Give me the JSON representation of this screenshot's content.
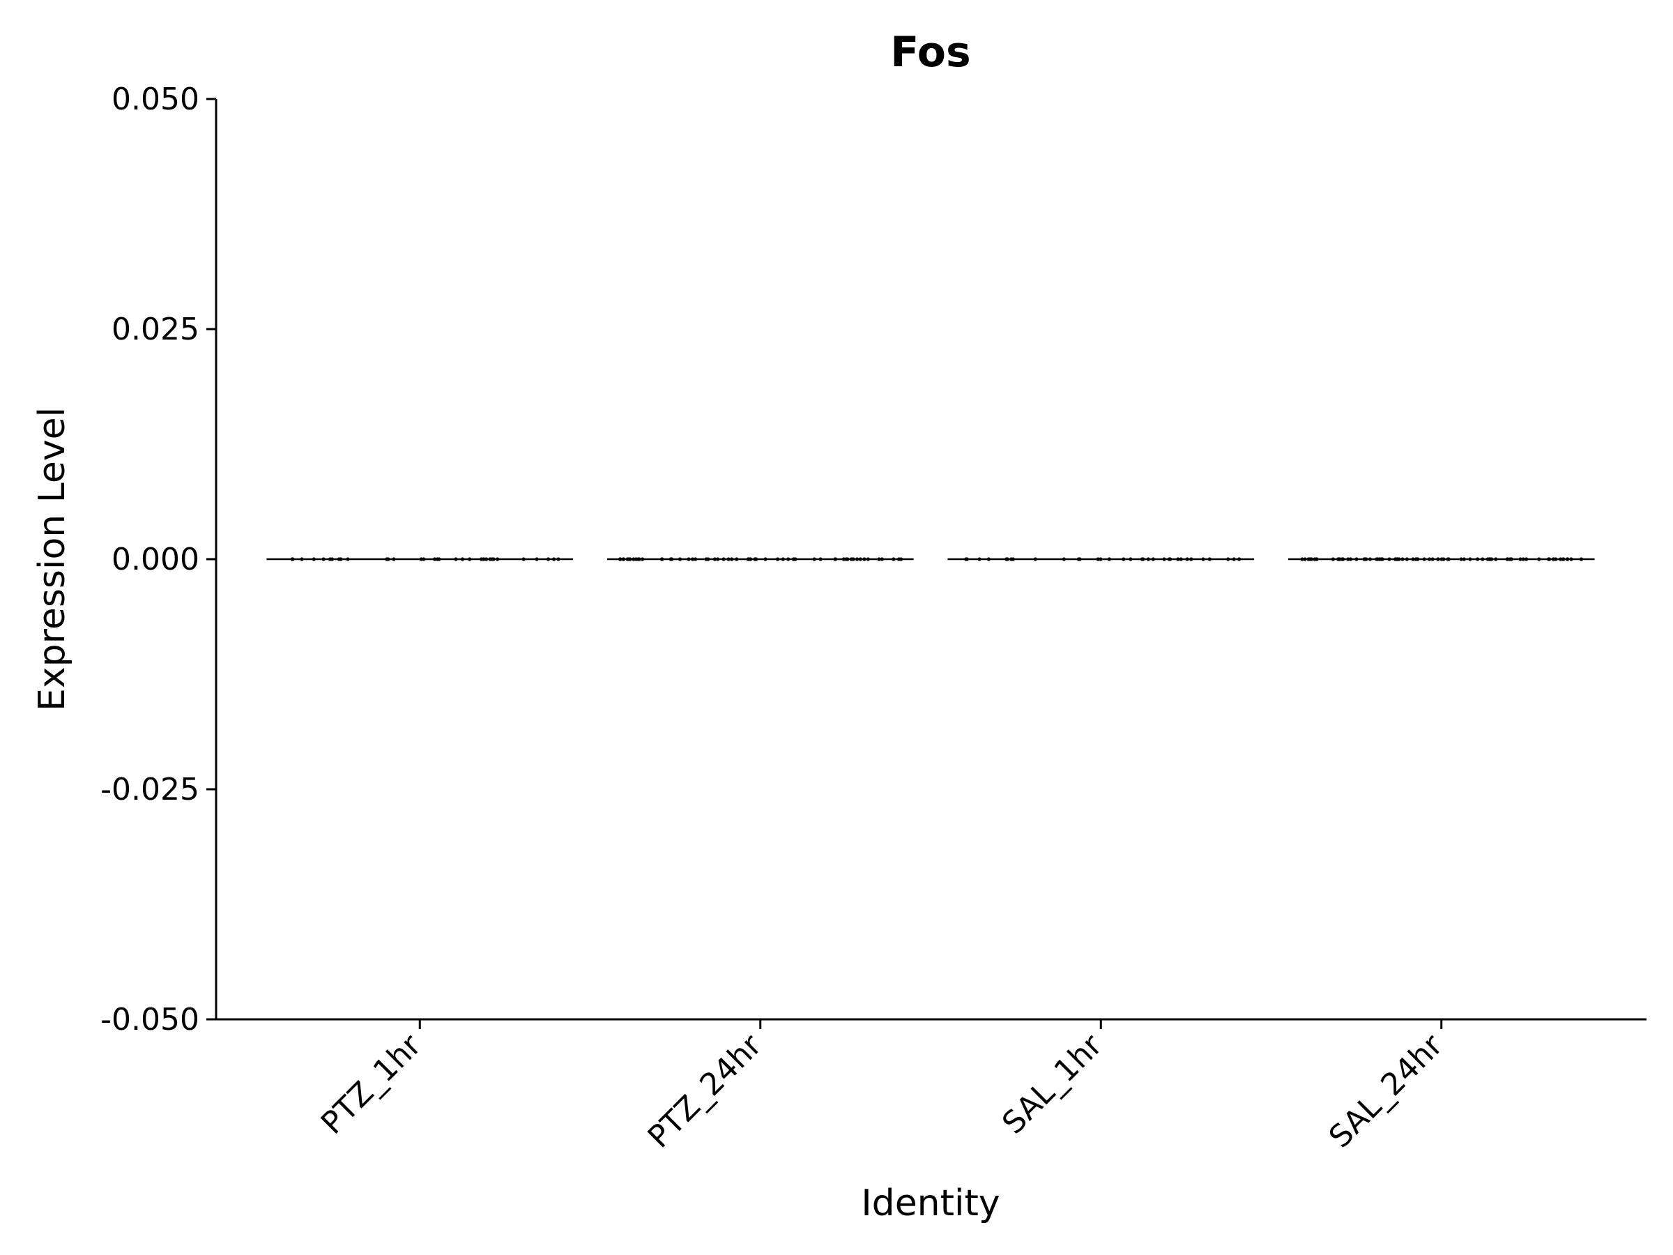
{
  "chart_data": {
    "type": "violin",
    "title": "Fos",
    "xlabel": "Identity",
    "ylabel": "Expression Level",
    "categories": [
      "PTZ_1hr",
      "PTZ_24hr",
      "SAL_1hr",
      "SAL_24hr"
    ],
    "ylim": [
      -0.05,
      0.05
    ],
    "yticks": [
      0.05,
      0.025,
      0.0,
      -0.025,
      -0.05
    ],
    "ytick_labels": [
      "0.050",
      "0.025",
      "0.000",
      "-0.025",
      "-0.050"
    ],
    "series": [
      {
        "category": "PTZ_1hr",
        "median": 0.0,
        "values_all": 0.0,
        "point_count": 34
      },
      {
        "category": "PTZ_24hr",
        "median": 0.0,
        "values_all": 0.0,
        "point_count": 60
      },
      {
        "category": "SAL_1hr",
        "median": 0.0,
        "values_all": 0.0,
        "point_count": 34
      },
      {
        "category": "SAL_24hr",
        "median": 0.0,
        "values_all": 0.0,
        "point_count": 80
      }
    ],
    "grid": false,
    "legend": "none",
    "colors": {
      "line": "#000000",
      "points": "#000000",
      "background": "#ffffff"
    }
  }
}
